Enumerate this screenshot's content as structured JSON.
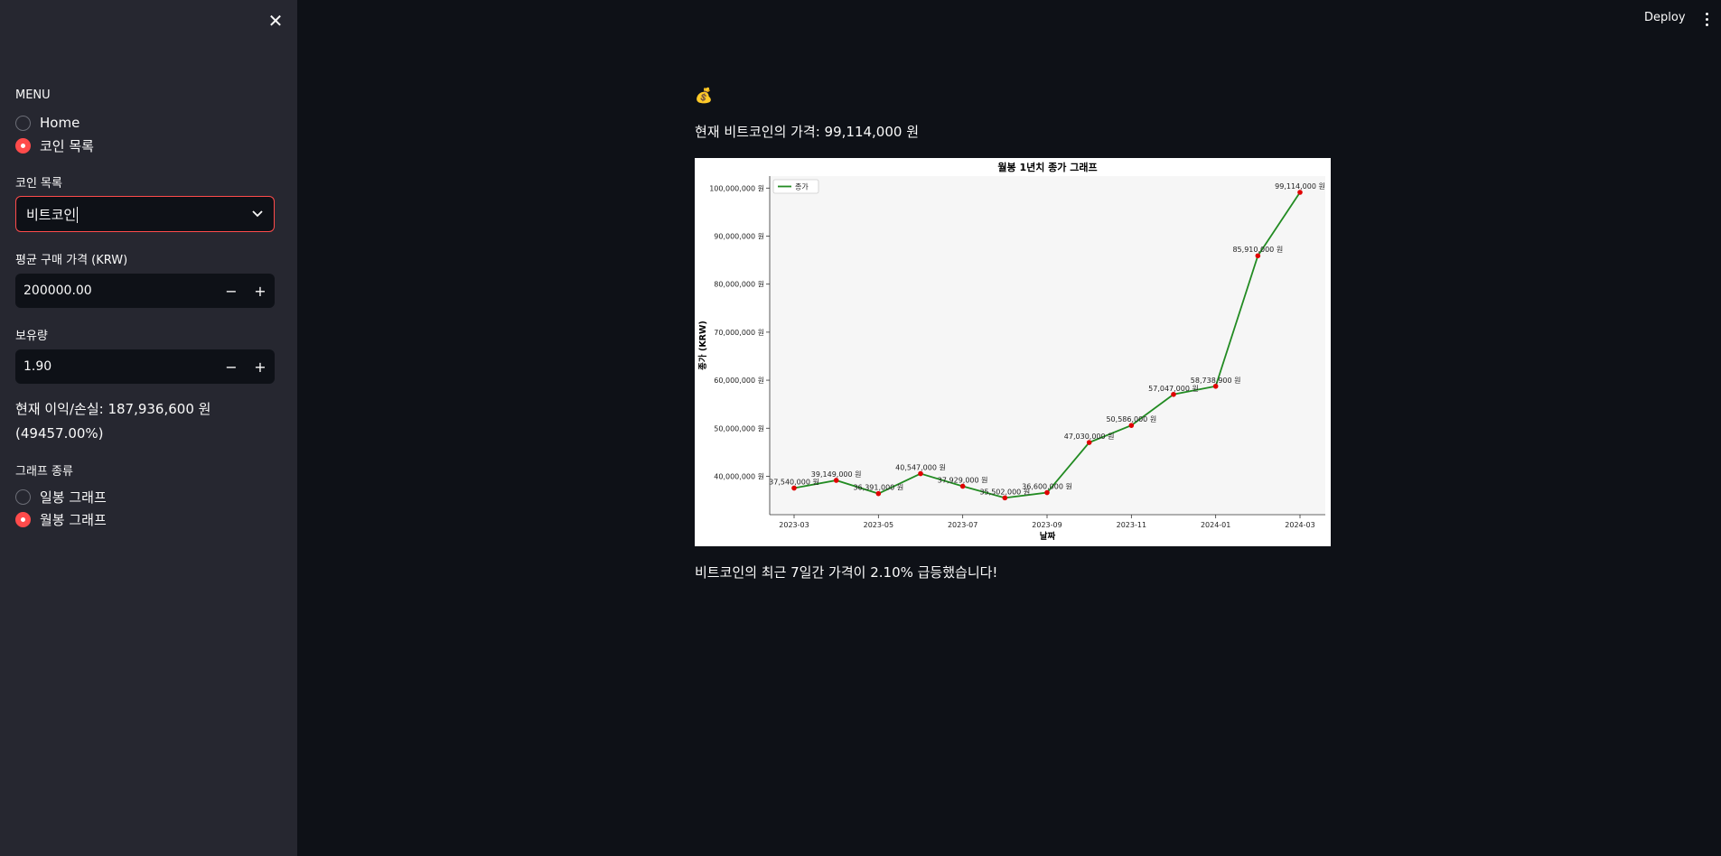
{
  "sidebar": {
    "close_icon": "close-icon",
    "menu_label": "MENU",
    "menu_options": [
      {
        "label": "Home",
        "selected": false
      },
      {
        "label": "코인 목록",
        "selected": true
      }
    ],
    "coin_select_label": "코인 목록",
    "coin_select_value": "비트코인",
    "avg_price_label": "평균 구매 가격 (KRW)",
    "avg_price_value": "200000.00",
    "holdings_label": "보유량",
    "holdings_value": "1.90",
    "profit_line1": "현재 이익/손실: 187,936,600 원",
    "profit_line2": "(49457.00%)",
    "graph_type_label": "그래프 종류",
    "graph_options": [
      {
        "label": "일봉 그래프",
        "selected": false
      },
      {
        "label": "월봉 그래프",
        "selected": true
      }
    ],
    "minus": "−",
    "plus": "+"
  },
  "header": {
    "deploy_label": "Deploy",
    "menu_icon": "more-vertical-icon"
  },
  "main": {
    "coin_icon": "money-bag-icon",
    "coin_glyph": "💰",
    "price_text": "현재 비트코인의 가격: 99,114,000 원",
    "alert_text": "비트코인의 최근 7일간 가격이 2.10% 급등했습니다!"
  },
  "colors": {
    "accent": "#ff4b4b",
    "line": "#228b22",
    "marker": "#e00000",
    "sidebar_bg": "#262730",
    "app_bg": "#0e1117"
  },
  "chart_data": {
    "type": "line",
    "title": "월봉 1년치 종가 그래프",
    "xlabel": "날짜",
    "ylabel": "종가 (KRW)",
    "legend": [
      "종가"
    ],
    "legend_position": "top-left",
    "grid": false,
    "x": [
      "2023-03",
      "2023-04",
      "2023-05",
      "2023-06",
      "2023-07",
      "2023-08",
      "2023-09",
      "2023-10",
      "2023-11",
      "2023-12",
      "2024-01",
      "2024-02",
      "2024-03"
    ],
    "series": [
      {
        "name": "종가",
        "values": [
          37540000,
          39149000,
          36391000,
          40547000,
          37929000,
          35502000,
          36600000,
          47030000,
          50586000,
          57047000,
          58738900,
          85910000,
          99114000
        ]
      }
    ],
    "point_labels": [
      "37,540,000 원",
      "39,149,000 원",
      "36,391,000 원",
      "40,547,000 원",
      "37,929,000 원",
      "35,502,000 원",
      "36,600,000 원",
      "47,030,000 원",
      "50,586,000 원",
      "57,047,000 원",
      "58,738,900 원",
      "85,910,000 원",
      "99,114,000 원"
    ],
    "x_ticks": [
      "2023-03",
      "2023-05",
      "2023-07",
      "2023-09",
      "2023-11",
      "2024-01",
      "2024-03"
    ],
    "y_ticks": [
      {
        "value": 40000000,
        "label": "40,000,000 원"
      },
      {
        "value": 50000000,
        "label": "50,000,000 원"
      },
      {
        "value": 60000000,
        "label": "60,000,000 원"
      },
      {
        "value": 70000000,
        "label": "70,000,000 원"
      },
      {
        "value": 80000000,
        "label": "80,000,000 원"
      },
      {
        "value": 90000000,
        "label": "90,000,000 원"
      },
      {
        "value": 100000000,
        "label": "100,000,000 원"
      }
    ],
    "ylim": [
      32000000,
      102500000
    ]
  }
}
